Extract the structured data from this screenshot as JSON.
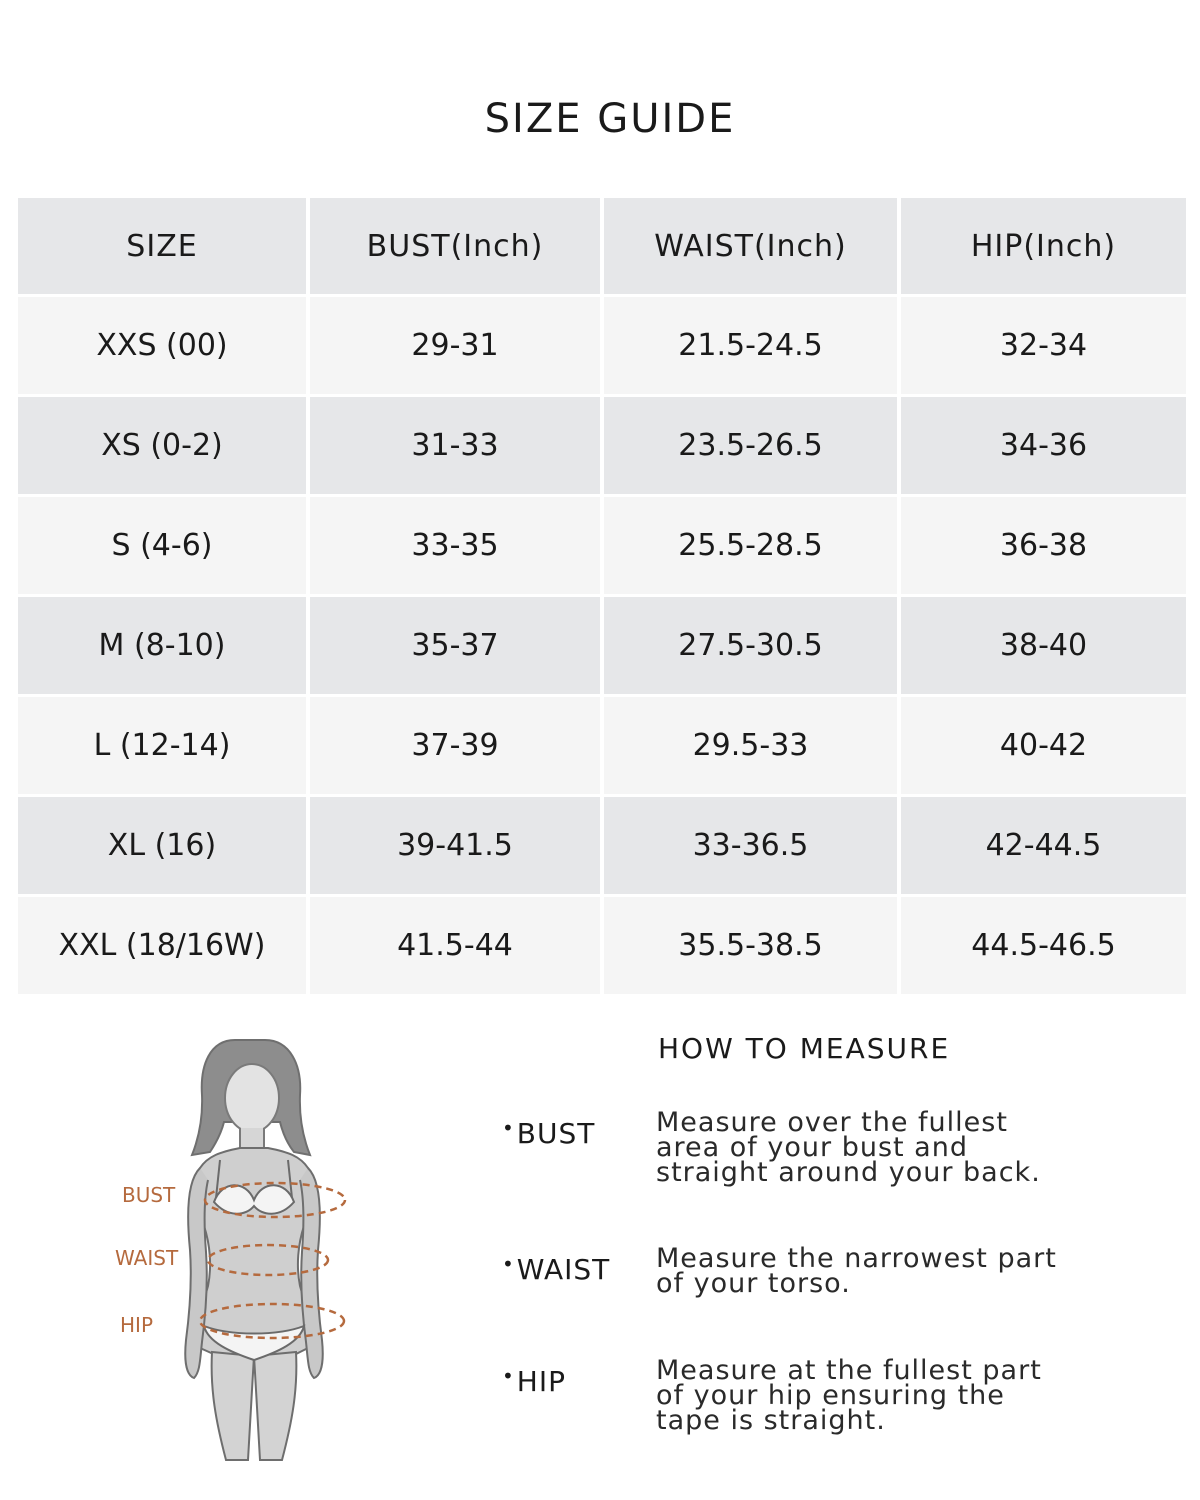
{
  "title": "SIZE GUIDE",
  "table": {
    "headers": [
      "SIZE",
      "BUST(Inch)",
      "WAIST(Inch)",
      "HIP(Inch)"
    ],
    "rows": [
      [
        "XXS (00)",
        "29-31",
        "21.5-24.5",
        "32-34"
      ],
      [
        "XS (0-2)",
        "31-33",
        "23.5-26.5",
        "34-36"
      ],
      [
        "S (4-6)",
        "33-35",
        "25.5-28.5",
        "36-38"
      ],
      [
        "M (8-10)",
        "35-37",
        "27.5-30.5",
        "38-40"
      ],
      [
        "L (12-14)",
        "37-39",
        "29.5-33",
        "40-42"
      ],
      [
        "XL (16)",
        "39-41.5",
        "33-36.5",
        "42-44.5"
      ],
      [
        "XXL (18/16W)",
        "41.5-44",
        "35.5-38.5",
        "44.5-46.5"
      ]
    ]
  },
  "figure": {
    "labels": {
      "bust": "BUST",
      "waist": "WAIST",
      "hip": "HIP"
    },
    "accent_color": "#b56a3e"
  },
  "how_to_measure": {
    "title": "HOW TO MEASURE",
    "items": [
      {
        "label": "BUST",
        "desc": "Measure over the fullest area of your bust and straight around your back."
      },
      {
        "label": "WAIST",
        "desc": "Measure the narrowest part of your torso."
      },
      {
        "label": "HIP",
        "desc": "Measure at the fullest part of your hip ensuring the tape is straight."
      }
    ]
  }
}
